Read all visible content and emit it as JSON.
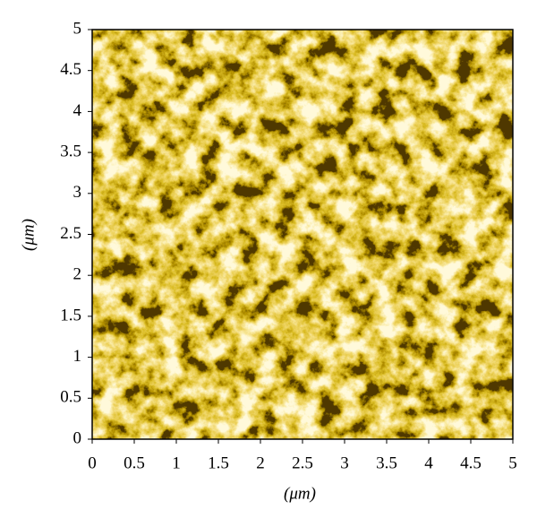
{
  "chart_data": {
    "type": "image",
    "xlabel": "(μm)",
    "ylabel": "(μm)",
    "xlim": [
      0,
      5
    ],
    "ylim": [
      0,
      5
    ],
    "xticks": [
      0,
      0.5,
      1,
      1.5,
      2,
      2.5,
      3,
      3.5,
      4,
      4.5,
      5
    ],
    "yticks": [
      0,
      0.5,
      1,
      1.5,
      2,
      2.5,
      3,
      3.5,
      4,
      4.5,
      5
    ]
  }
}
